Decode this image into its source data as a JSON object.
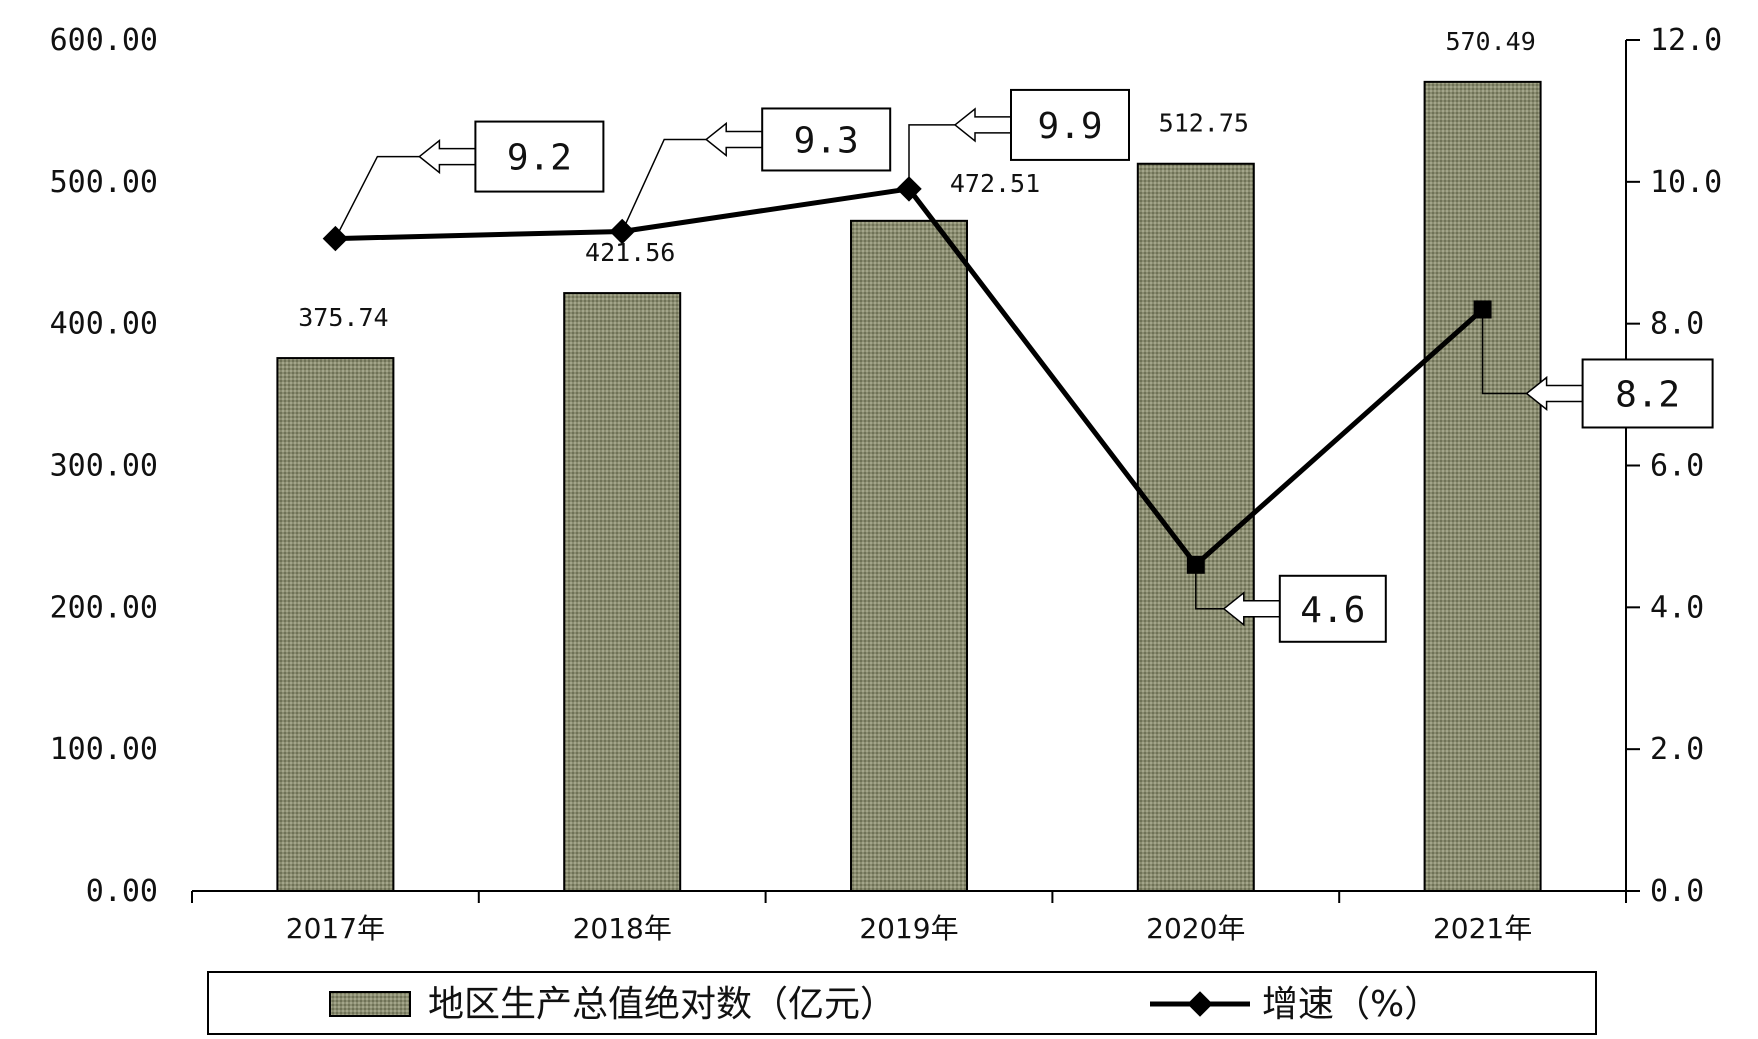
{
  "chart_data": {
    "type": "bar",
    "categories": [
      "2017年",
      "2018年",
      "2019年",
      "2020年",
      "2021年"
    ],
    "series": [
      {
        "name": "地区生产总值绝对数（亿元）",
        "type": "bar",
        "axis": "left",
        "values": [
          375.74,
          421.56,
          472.51,
          512.75,
          570.49
        ],
        "value_labels": [
          "375.74",
          "421.56",
          "472.51",
          "512.75",
          "570.49"
        ]
      },
      {
        "name": "增速（%）",
        "type": "line",
        "axis": "right",
        "values": [
          9.2,
          9.3,
          9.9,
          4.6,
          8.2
        ],
        "value_labels": [
          "9.2",
          "9.3",
          "9.9",
          "4.6",
          "8.2"
        ]
      }
    ],
    "y_left": {
      "range": [
        0,
        600
      ],
      "ticks": [
        0,
        100,
        200,
        300,
        400,
        500,
        600
      ],
      "tick_labels": [
        "0.00",
        "100.00",
        "200.00",
        "300.00",
        "400.00",
        "500.00",
        "600.00"
      ]
    },
    "y_right": {
      "range": [
        0,
        12
      ],
      "ticks": [
        0,
        2,
        4,
        6,
        8,
        10,
        12
      ],
      "tick_labels": [
        "0.0",
        "2.0",
        "4.0",
        "6.0",
        "8.0",
        "10.0",
        "12.0"
      ]
    },
    "grid": false,
    "legend_position": "bottom",
    "colors": {
      "bar_fill": "#8a8c70",
      "bar_stroke": "#000000",
      "line": "#000000"
    }
  }
}
